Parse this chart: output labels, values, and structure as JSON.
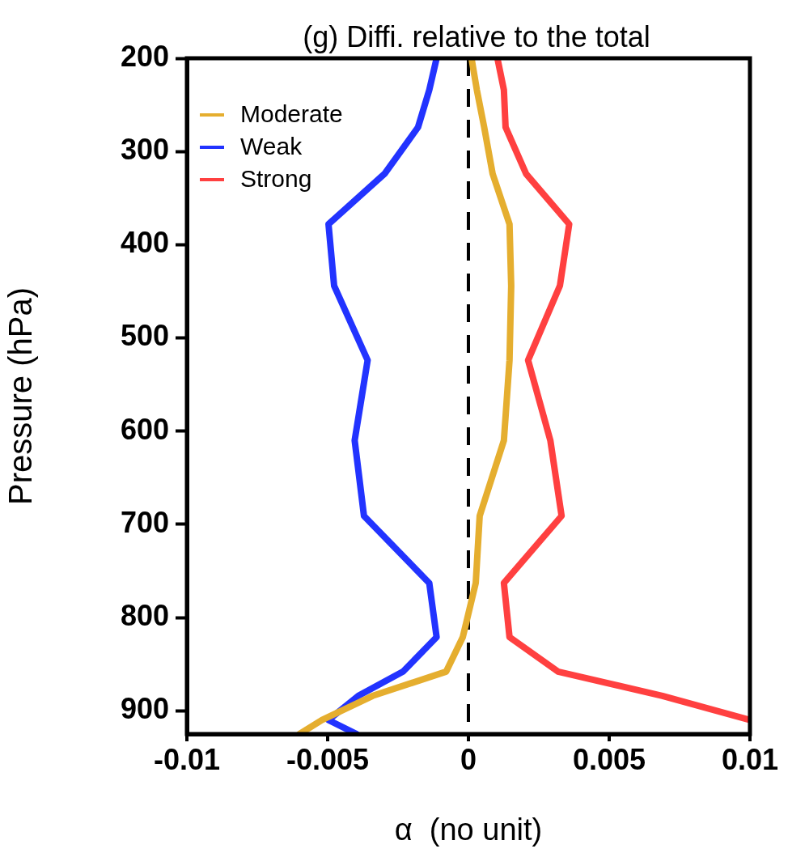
{
  "chart_data": {
    "type": "line",
    "title": "(g) Diffi. relative to the total",
    "xlabel": "α  (no unit)",
    "ylabel": "Pressure (hPa)",
    "xlim": [
      -0.01,
      0.01
    ],
    "xticks": [
      -0.01,
      -0.005,
      0,
      0.005,
      0.01
    ],
    "ylim": [
      925,
      200
    ],
    "yticks": [
      200,
      300,
      400,
      500,
      600,
      700,
      800,
      900
    ],
    "legend": "top left",
    "line_style": "solid",
    "ref_lines": [
      {
        "axis": "x",
        "value": 0,
        "line_style": "dashed",
        "color": "#000000"
      }
    ],
    "series": [
      {
        "name": "Moderate",
        "color": "#e5ae2f",
        "x": [
          0.00011,
          0.0003,
          0.00056,
          0.00086,
          0.00146,
          0.00152,
          0.00146,
          0.00126,
          0.0004,
          0.00026,
          -0.0002,
          -0.00079,
          -0.0034,
          -0.0052,
          -0.006
        ],
        "values": [
          200,
          234,
          274,
          324,
          378,
          444,
          524,
          610,
          691,
          763,
          821,
          858,
          884,
          910,
          925
        ]
      },
      {
        "name": "Weak",
        "color": "#2233ff",
        "x": [
          -0.00113,
          -0.00139,
          -0.00179,
          -0.00298,
          -0.00497,
          -0.00477,
          -0.00358,
          -0.00404,
          -0.00371,
          -0.00139,
          -0.00113,
          -0.00232,
          -0.00391,
          -0.00497,
          -0.00397
        ],
        "values": [
          200,
          234,
          274,
          324,
          378,
          444,
          524,
          610,
          691,
          763,
          821,
          858,
          884,
          910,
          925
        ]
      },
      {
        "name": "Strong",
        "color": "#ff4040",
        "x": [
          0.00103,
          0.00126,
          0.00132,
          0.00205,
          0.00358,
          0.00325,
          0.00212,
          0.00291,
          0.00331,
          0.00126,
          0.00146,
          0.00318,
          0.00689,
          0.01
        ],
        "values": [
          200,
          234,
          274,
          324,
          378,
          444,
          524,
          610,
          691,
          763,
          821,
          858,
          884,
          910
        ]
      }
    ]
  }
}
